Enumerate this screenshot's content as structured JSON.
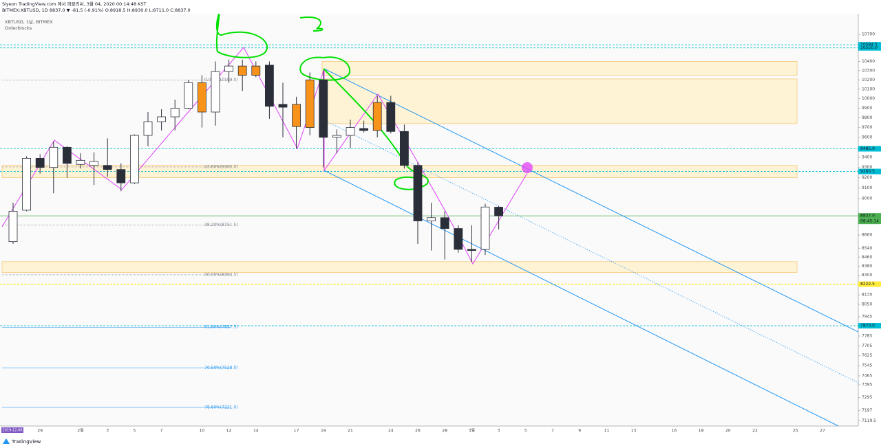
{
  "header": {
    "publisher": "Siyeon TradingView.com 에서 퍼블리쉬, 3월 04, 2020 00:14:48 KST",
    "quote": "BITMEX:XBTUSD, 1D 8837.0 ▼ -81.5 (-0.91%) O:8918.5 H:8930.0 L:8711.0 C:8837.0",
    "symbol": "XBTUSD, 1날, BITMEX",
    "indicator": "Orderblocks"
  },
  "footer": {
    "brand": "TradingView"
  },
  "chart_data": {
    "type": "candlestick",
    "categories": [
      null,
      null,
      "29",
      null,
      null,
      "2월",
      null,
      "3",
      null,
      "5",
      null,
      "7",
      null,
      null,
      "10",
      null,
      "12",
      null,
      "14",
      null,
      null,
      "17",
      null,
      "19",
      null,
      "21",
      null,
      null,
      "24",
      null,
      "26",
      null,
      "28",
      null,
      "3월",
      null,
      "3",
      null,
      "5",
      null,
      "7",
      null,
      "9",
      null,
      "11",
      null,
      "13",
      null,
      null,
      "16",
      null,
      "18",
      null,
      "20",
      null,
      "22",
      null,
      null,
      "25",
      null,
      "27"
    ],
    "open": [
      8600,
      8890,
      9390,
      9300,
      9500,
      9330,
      9320,
      9320,
      9280,
      9150,
      9620,
      9760,
      9810,
      9900,
      10170,
      9860,
      10290,
      10350,
      10350,
      10360,
      9940,
      9940,
      9700,
      10200,
      9600,
      9620,
      9690,
      9670,
      9960,
      9660,
      9320,
      8790,
      8820,
      8720,
      8530,
      8530,
      8918.5,
      null,
      null,
      null,
      null,
      null,
      null,
      null,
      null,
      null,
      null,
      null,
      null,
      null,
      null,
      null,
      null,
      null,
      null,
      null,
      null,
      null,
      null,
      null,
      null
    ],
    "high": [
      8960,
      9410,
      9430,
      9560,
      9510,
      9440,
      9450,
      9590,
      9340,
      9630,
      9860,
      9890,
      9990,
      10200,
      10250,
      10400,
      10420,
      10420,
      10400,
      10400,
      10170,
      10020,
      10280,
      10300,
      9680,
      9780,
      9770,
      10030,
      10030,
      9730,
      9350,
      8960,
      8880,
      8750,
      8750,
      8950,
      8930,
      null,
      null,
      null,
      null,
      null,
      null,
      null,
      null,
      null,
      null,
      null,
      null,
      null,
      null,
      null,
      null,
      null,
      null,
      null,
      null,
      null,
      null,
      null,
      null
    ],
    "low": [
      8580,
      8880,
      9240,
      9050,
      9200,
      9290,
      9130,
      9210,
      9070,
      9140,
      9510,
      9670,
      9670,
      9890,
      9700,
      9720,
      10170,
      10080,
      10230,
      9790,
      9600,
      9490,
      9620,
      9300,
      9440,
      9490,
      9650,
      9600,
      9640,
      9290,
      8580,
      8520,
      8440,
      8500,
      8420,
      8480,
      8711,
      null,
      null,
      null,
      null,
      null,
      null,
      null,
      null,
      null,
      null,
      null,
      null,
      null,
      null,
      null,
      null,
      null,
      null,
      null,
      null,
      null,
      null,
      null,
      null
    ],
    "close": [
      8880,
      9390,
      9300,
      9500,
      9340,
      9370,
      9360,
      9280,
      9150,
      9620,
      9760,
      9810,
      9900,
      10170,
      9860,
      10290,
      10350,
      10250,
      10250,
      9920,
      9910,
      9710,
      10200,
      9600,
      9620,
      9700,
      9670,
      9960,
      9660,
      9320,
      8790,
      8820,
      8720,
      8530,
      8520,
      8920,
      8837,
      null,
      null,
      null,
      null,
      null,
      null,
      null,
      null,
      null,
      null,
      null,
      null,
      null,
      null,
      null,
      null,
      null,
      null,
      null,
      null,
      null,
      null,
      null,
      null
    ],
    "up_color": "#ffffff",
    "down_color": "#2a2e39",
    "highlight_color": "#f7931a",
    "highlighted": [
      14,
      17,
      18,
      21,
      22,
      27
    ],
    "log_scale": true,
    "ylim": [
      7080,
      10937
    ],
    "yticks": [
      10700,
      10400,
      10300,
      10200,
      10100,
      10000,
      9900,
      9800,
      9700,
      9600,
      9400,
      9300,
      9200,
      9100,
      9000,
      8660,
      8540,
      8460,
      8380,
      8300,
      8130,
      8050,
      7945,
      7785,
      7705,
      7625,
      7545,
      7465,
      7395,
      7295,
      7197,
      7119.5
    ],
    "cursor_date": "2019-12-08",
    "price_lines": [
      {
        "value": 10584.5,
        "color": "#00bcd4"
      },
      {
        "value": 10550,
        "label": "10550.0",
        "color": "#00bcd4"
      },
      {
        "value": 9485,
        "label": "9485.0",
        "color": "#00bcd4"
      },
      {
        "value": 9260.5,
        "color": "#00bcd4"
      },
      {
        "value": 8837,
        "label": "8837.0",
        "color": "#4caf50"
      },
      {
        "value": 8222.5,
        "color": "#ffeb3b"
      },
      {
        "value": 7870,
        "label": "7870.0",
        "color": "#00bcd4"
      }
    ],
    "countdown": "08:45:14",
    "fib_levels": [
      {
        "value": 10199,
        "label": "0.00%(10199.0)",
        "color": "#787b86"
      },
      {
        "value": 9305,
        "label": "23.60%(9305.0)",
        "color": "#787b86"
      },
      {
        "value": 8751.5,
        "label": "38.20%(8751.5)",
        "color": "#787b86"
      },
      {
        "value": 8304.5,
        "label": "50.00%(8304.5)",
        "color": "#787b86"
      },
      {
        "value": 7857.5,
        "label": "61.80%(7857.5)",
        "color": "#2196f3"
      },
      {
        "value": 7528,
        "label": "70.50%(7528.0)",
        "color": "#2196f3"
      },
      {
        "value": 7221,
        "label": "78.60%(7221.0)",
        "color": "#2196f3"
      }
    ],
    "orderblocks": [
      {
        "top": 10400,
        "bottom": 10250
      },
      {
        "top": 10210,
        "bottom": 9740
      },
      {
        "top": 9320,
        "bottom": 9200
      },
      {
        "top": 8420,
        "bottom": 8325
      }
    ]
  }
}
